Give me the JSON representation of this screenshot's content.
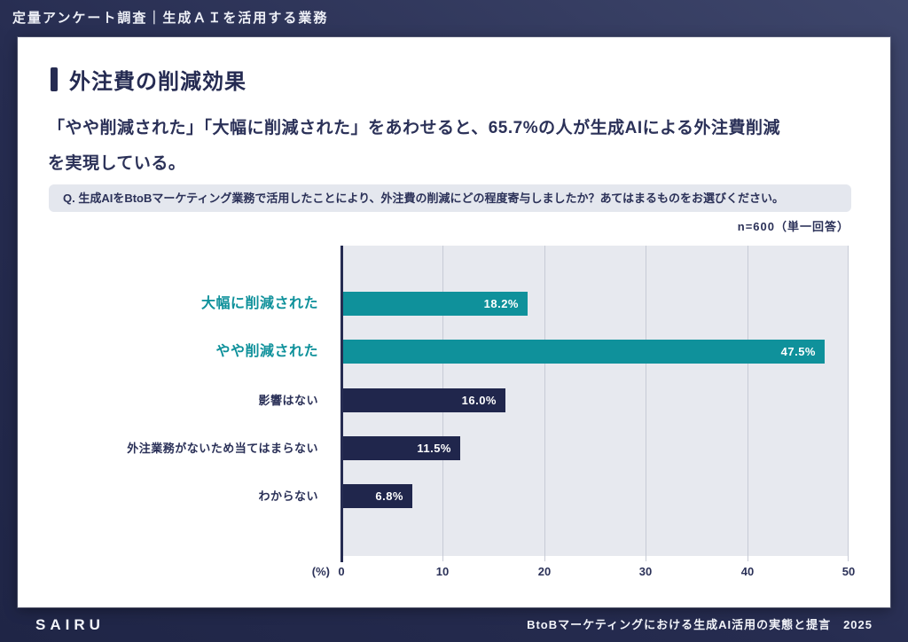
{
  "header": {
    "title": "定量アンケート調査｜生成ＡＩを活用する業務"
  },
  "content": {
    "section_title": "外注費の削減効果",
    "lead_line1": "「やや削減された」「大幅に削減された」をあわせると、65.7%の人が生成AIによる外注費削減",
    "lead_line2": "を実現している。",
    "question": "Q. 生成AIをBtoBマーケティング業務で活用したことにより、外注費の削減にどの程度寄与しましたか？あてはまるものをお選びください。",
    "sample_note": "n=600（単一回答）"
  },
  "footer": {
    "brand": "SAIRU",
    "source": "BtoBマーケティングにおける生成AI活用の実態と提言　2025"
  },
  "colors": {
    "frame_navy": "#262c50",
    "accent_teal": "#0f919b",
    "bar_navy": "#20264c",
    "text_navy": "#2b3158",
    "plot_bg": "#e7e9ef",
    "gridline": "#c7cbd6",
    "qbox_bg": "#e4e7ee"
  },
  "chart_data": {
    "type": "bar",
    "orientation": "horizontal",
    "title": "外注費の削減効果",
    "categories": [
      "大幅に削減された",
      "やや削減された",
      "影響はない",
      "外注業務がないため当てはまらない",
      "わからない"
    ],
    "values": [
      18.2,
      47.5,
      16.0,
      11.5,
      6.8
    ],
    "value_labels": [
      "18.2%",
      "47.5%",
      "16.0%",
      "11.5%",
      "6.8%"
    ],
    "bar_colors": [
      "#0f919b",
      "#0f919b",
      "#20264c",
      "#20264c",
      "#20264c"
    ],
    "label_colors": [
      "#0f919b",
      "#0f919b",
      "#2b3158",
      "#2b3158",
      "#2b3158"
    ],
    "highlight": [
      true,
      true,
      false,
      false,
      false
    ],
    "xlabel": "(%)",
    "ylabel": "",
    "xlim": [
      0,
      50
    ],
    "ticks": [
      0,
      10,
      20,
      30,
      40,
      50
    ],
    "grid": true,
    "legend": false,
    "sample_size": "n=600"
  }
}
